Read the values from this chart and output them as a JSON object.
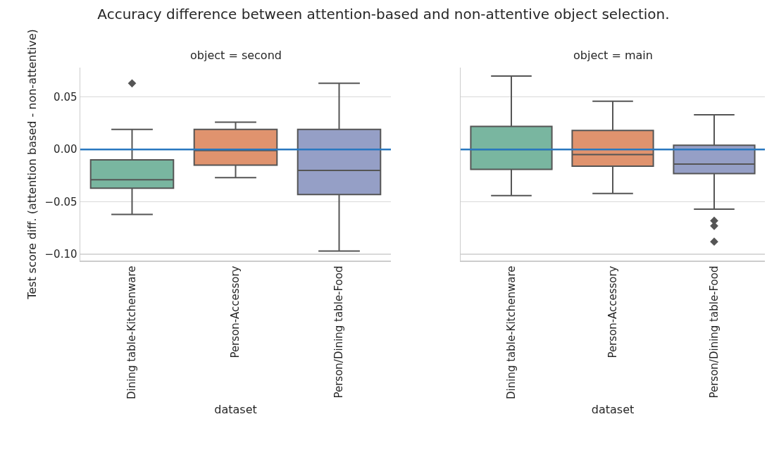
{
  "chart_data": [
    {
      "type": "box",
      "title": "Accuracy difference between attention-based and non-attentive object selection.",
      "subtitle": "object = second",
      "xlabel": "dataset",
      "ylabel": "Test score diff. (attention based - non-attentive)",
      "categories": [
        "Dining table-Kitchenware",
        "Person-Accessory",
        "Person/Dining table-Food"
      ],
      "colors": [
        "#79b6a0",
        "#e0936e",
        "#959fc6"
      ],
      "boxes": [
        {
          "low": -0.062,
          "q1": -0.037,
          "median": -0.029,
          "q3": -0.01,
          "high": 0.019,
          "outliers": [
            0.063
          ]
        },
        {
          "low": -0.027,
          "q1": -0.015,
          "median": -0.001,
          "q3": 0.019,
          "high": 0.026
        },
        {
          "low": -0.097,
          "q1": -0.043,
          "median": -0.02,
          "q3": 0.019,
          "high": 0.063
        }
      ],
      "ylim": [
        -0.106,
        0.078
      ],
      "yticks": [
        {
          "value": -0.1,
          "label": "−0.10"
        },
        {
          "value": -0.05,
          "label": "−0.05"
        },
        {
          "value": 0,
          "label": "0.00"
        },
        {
          "value": 0.05,
          "label": "0.05"
        }
      ],
      "ref_lines": [
        {
          "axis": "y",
          "value": 0,
          "color": "#2878c0"
        }
      ],
      "grid": "y",
      "marker": "diamond"
    },
    {
      "type": "box",
      "subtitle": "object = main",
      "xlabel": "dataset",
      "categories": [
        "Dining table-Kitchenware",
        "Person-Accessory",
        "Person/Dining table-Food"
      ],
      "colors": [
        "#79b6a0",
        "#e0936e",
        "#959fc6"
      ],
      "boxes": [
        {
          "low": -0.044,
          "q1": -0.019,
          "median": 0.0,
          "q3": 0.022,
          "high": 0.07
        },
        {
          "low": -0.042,
          "q1": -0.016,
          "median": -0.005,
          "q3": 0.018,
          "high": 0.046
        },
        {
          "low": -0.057,
          "q1": -0.023,
          "median": -0.014,
          "q3": 0.004,
          "high": 0.033,
          "outliers": [
            -0.068,
            -0.073,
            -0.088
          ]
        }
      ],
      "ylim": [
        -0.106,
        0.078
      ],
      "yticks": [
        -0.1,
        -0.05,
        0,
        0.05
      ],
      "ref_lines": [
        {
          "axis": "y",
          "value": 0,
          "color": "#2878c0"
        }
      ],
      "grid": "y",
      "tick_labels": "x",
      "marker": "diamond"
    }
  ]
}
